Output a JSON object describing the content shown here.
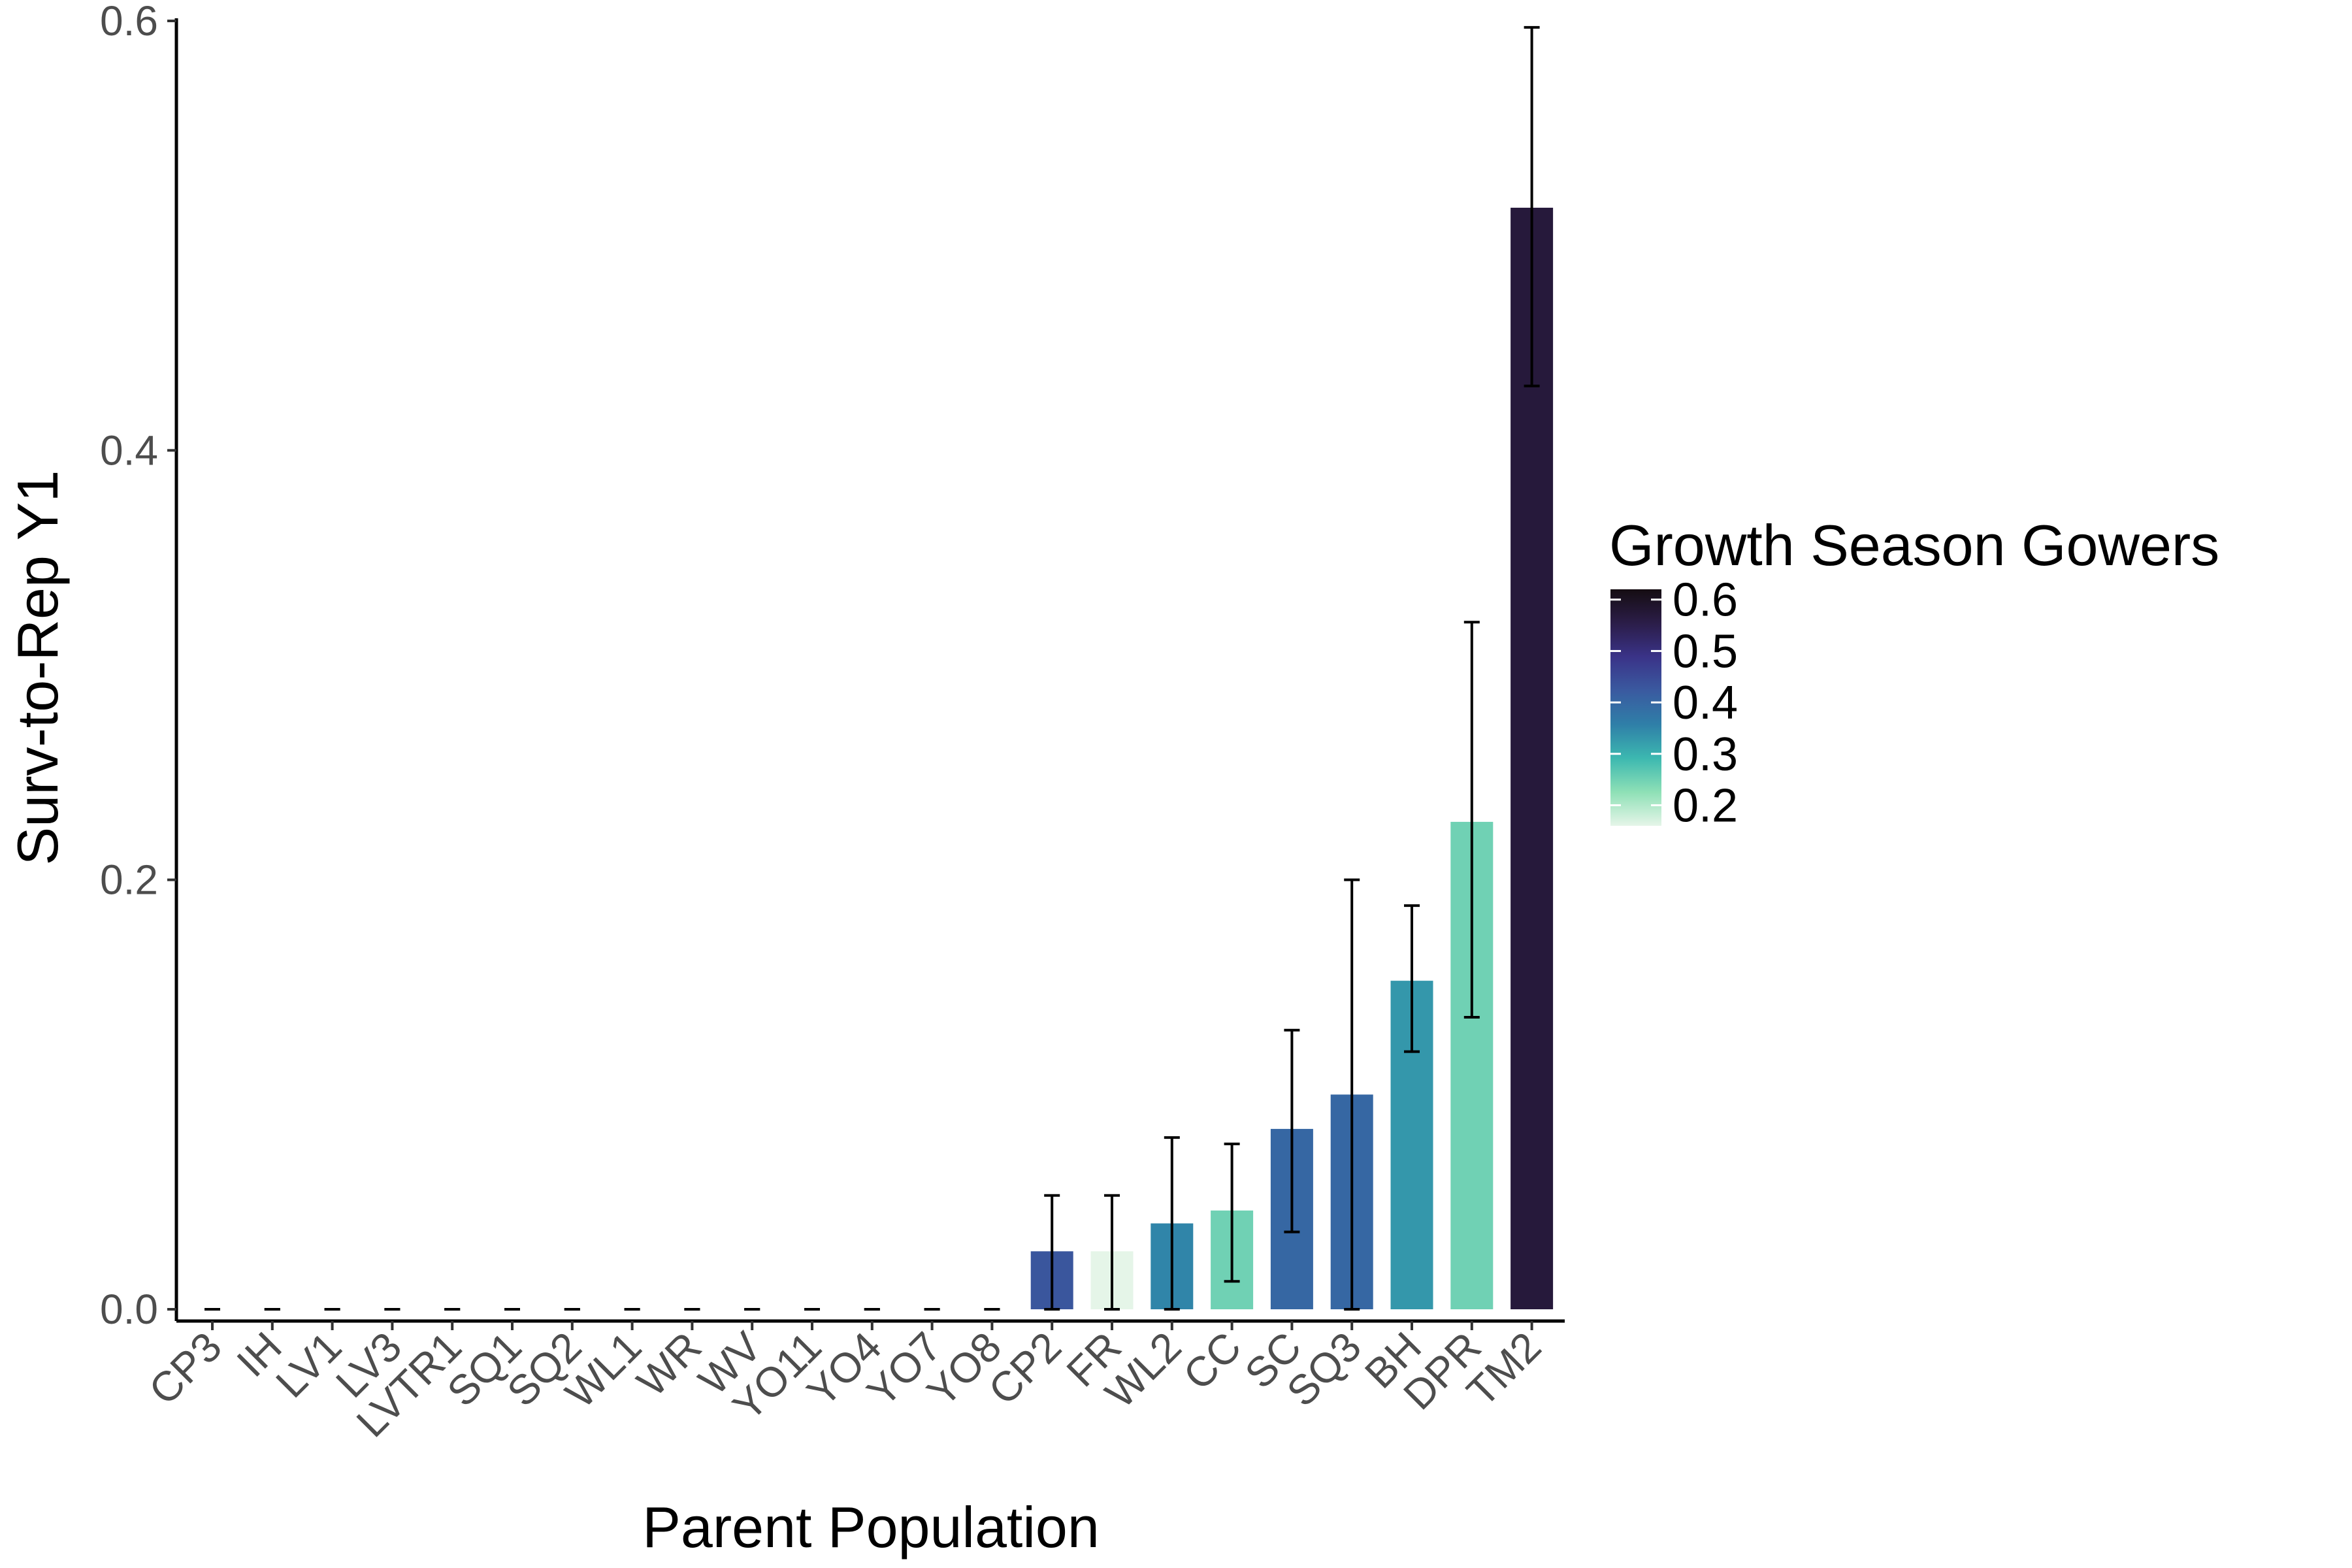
{
  "chart_data": {
    "type": "bar",
    "xlabel": "Parent Population",
    "ylabel": "Surv-to-Rep Y1",
    "ylim": [
      0,
      0.6
    ],
    "y_ticks": [
      "0.0",
      "0.2",
      "0.4",
      "0.6"
    ],
    "grid": false,
    "categories": [
      "CP3",
      "IH",
      "LV1",
      "LV3",
      "LVTR1",
      "SQ1",
      "SQ2",
      "WL1",
      "WR",
      "WV",
      "YO11",
      "YO4",
      "YO7",
      "YO8",
      "CP2",
      "FR",
      "WL2",
      "CC",
      "SC",
      "SQ3",
      "BH",
      "DPR",
      "TM2"
    ],
    "values": [
      0,
      0,
      0,
      0,
      0,
      0,
      0,
      0,
      0,
      0,
      0,
      0,
      0,
      0,
      0.027,
      0.027,
      0.04,
      0.046,
      0.084,
      0.1,
      0.153,
      0.227,
      0.513
    ],
    "error_low": [
      0,
      0,
      0,
      0,
      0,
      0,
      0,
      0,
      0,
      0,
      0,
      0,
      0,
      0,
      0,
      0,
      0,
      0.013,
      0.036,
      0,
      0.12,
      0.136,
      0.43
    ],
    "error_high": [
      0,
      0,
      0,
      0,
      0,
      0,
      0,
      0,
      0,
      0,
      0,
      0,
      0,
      0,
      0.053,
      0.053,
      0.08,
      0.077,
      0.13,
      0.2,
      0.188,
      0.32,
      0.597
    ],
    "color_values": [
      null,
      null,
      null,
      null,
      null,
      null,
      null,
      null,
      null,
      null,
      null,
      null,
      null,
      null,
      0.43,
      0.16,
      0.35,
      0.25,
      0.4,
      0.4,
      0.33,
      0.25,
      0.57
    ],
    "legend": {
      "title": "Growth Season Gowers",
      "placement": "right",
      "range": [
        0.16,
        0.62
      ],
      "ticks": [
        "0.6",
        "0.5",
        "0.4",
        "0.3",
        "0.2"
      ],
      "tick_values": [
        0.6,
        0.5,
        0.4,
        0.3,
        0.2
      ],
      "colors": [
        "#e5f5e8",
        "#8ee0b6",
        "#3cb8b0",
        "#2f7fa8",
        "#3a5aa0",
        "#3a3388",
        "#2b1d48",
        "#150d12"
      ]
    }
  }
}
